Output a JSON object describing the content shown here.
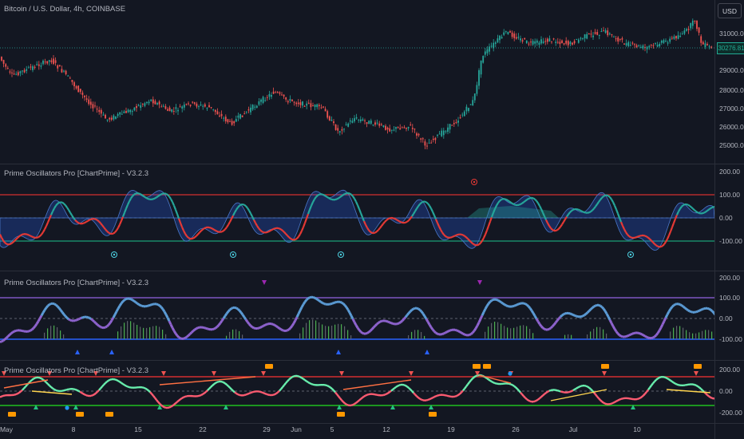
{
  "symbol_title": "Bitcoin / U.S. Dollar, 4h, COINBASE",
  "currency_button": "USD",
  "price_axis": [
    "31000.00",
    "29000.00",
    "28000.00",
    "27000.00",
    "26000.00",
    "25000.00"
  ],
  "last_price": "30276.81",
  "indicator_title": "Prime Oscillators Pro [ChartPrime] - V3.2.3",
  "osc_axis": [
    "200.00",
    "100.00",
    "0.00",
    "-100.00"
  ],
  "osc3_axis": [
    "200.00",
    "0.00",
    "-200.00"
  ],
  "time_axis": [
    "May",
    "8",
    "15",
    "22",
    "29",
    "Jun",
    "5",
    "12",
    "19",
    "26",
    "Jul",
    "10"
  ],
  "colors": {
    "background": "#131722",
    "up_candle": "#26a69a",
    "down_candle": "#ef5350",
    "overbought_line": "#d32f2f",
    "oversold_line": "#2e7d32",
    "purple_line": "#7e57c2",
    "blue_line": "#2962ff",
    "signal_orange": "#ff9800"
  },
  "icons": [
    "signal-triangle-down-icon",
    "signal-triangle-up-icon",
    "circle-marker-icon",
    "label-box-icon"
  ]
}
